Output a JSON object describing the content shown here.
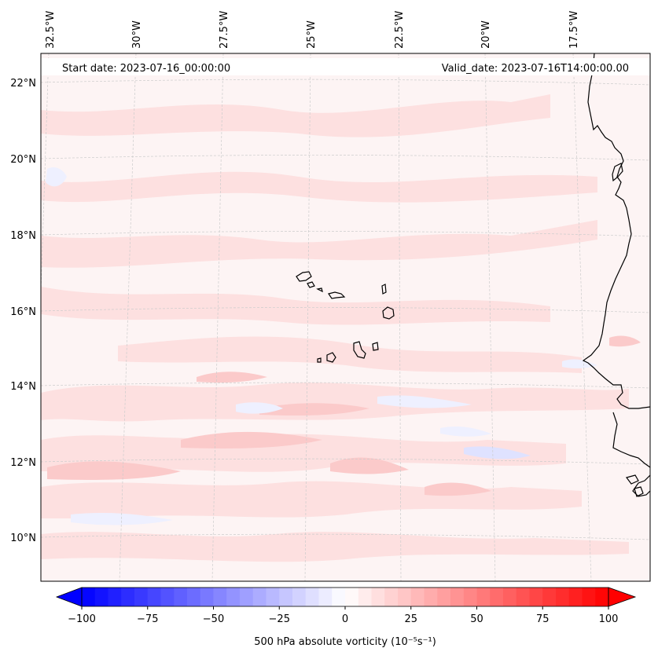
{
  "map": {
    "start_date_label": "Start date: 2023-07-16_00:00:00",
    "valid_date_label": "Valid_date: 2023-07-16T14:00:00.00",
    "lon_labels": [
      "32.5°W",
      "30°W",
      "27.5°W",
      "25°W",
      "22.5°W",
      "20°W",
      "17.5°W"
    ],
    "lat_labels": [
      "22°N",
      "20°N",
      "18°N",
      "16°N",
      "14°N",
      "12°N",
      "10°N"
    ],
    "colors": {
      "background_pink": "#fdf4f4",
      "light_red": "#fde0e0",
      "mid_red": "#fbcaca",
      "light_blue": "#eef0ff",
      "mid_blue": "#dfe2ff",
      "coast": "#000000",
      "grid": "#cccccc"
    }
  },
  "colorbar": {
    "label": "500 hPa absolute vorticity (10⁻⁵s⁻¹)",
    "min": -100,
    "max": 100,
    "tick_labels": [
      "−100",
      "−75",
      "−50",
      "−25",
      "0",
      "25",
      "50",
      "75",
      "100"
    ],
    "start_color": "#0000ff",
    "mid_color": "#ffffff",
    "end_color": "#ff0000",
    "levels": 40
  }
}
